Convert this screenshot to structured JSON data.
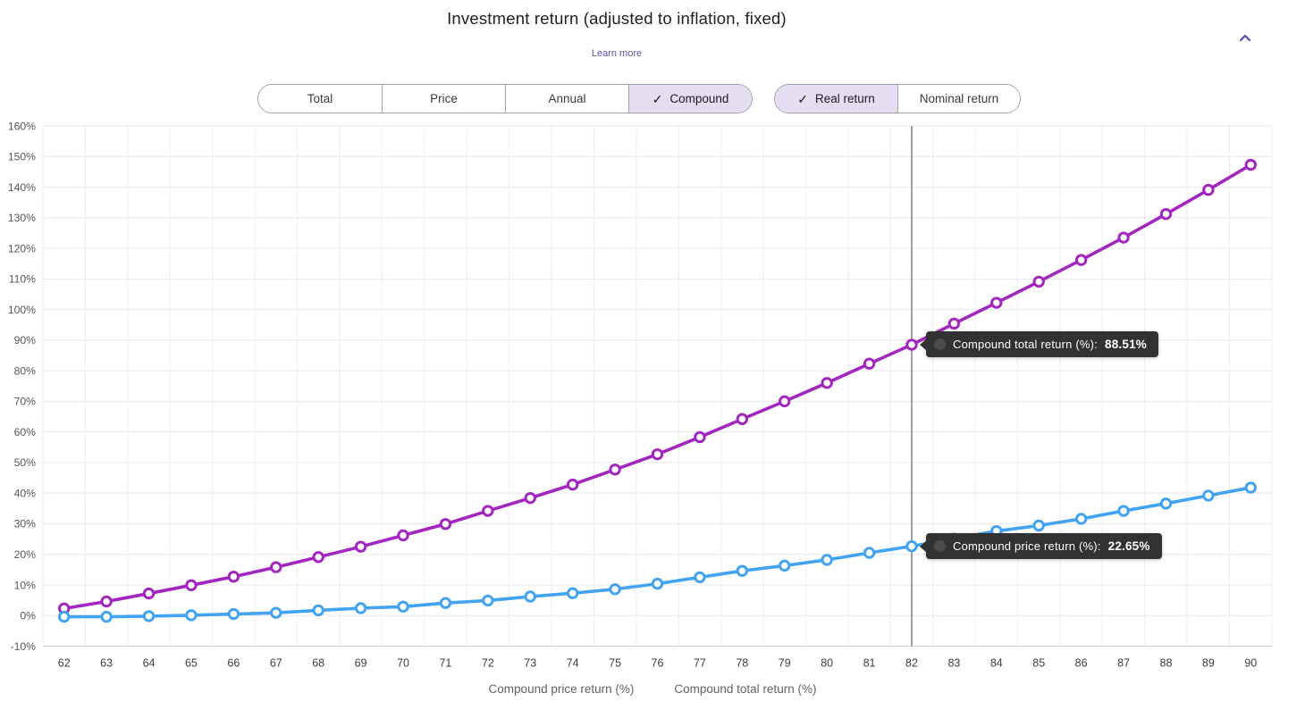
{
  "header": {
    "title": "Investment return (adjusted to inflation, fixed)",
    "learn_more_label": "Learn more",
    "collapse_icon": "chevron-up"
  },
  "controls": {
    "check_icon": "✓",
    "metric_group": [
      {
        "label": "Total",
        "selected": false
      },
      {
        "label": "Price",
        "selected": false
      },
      {
        "label": "Annual",
        "selected": false
      },
      {
        "label": "Compound",
        "selected": true
      }
    ],
    "return_group": [
      {
        "label": "Real return",
        "selected": true
      },
      {
        "label": "Nominal return",
        "selected": false
      }
    ]
  },
  "tooltips": {
    "total": {
      "label": "Compound total return (%):",
      "value": "88.51%"
    },
    "price": {
      "label": "Compound price return (%):",
      "value": "22.65%"
    }
  },
  "chart_data": {
    "type": "line",
    "title": "Investment return (adjusted to inflation, fixed)",
    "x": [
      62,
      63,
      64,
      65,
      66,
      67,
      68,
      69,
      70,
      71,
      72,
      73,
      74,
      75,
      76,
      77,
      78,
      79,
      80,
      81,
      82,
      83,
      84,
      85,
      86,
      87,
      88,
      89,
      90
    ],
    "xlabel": "",
    "ylabel": "",
    "ylim": [
      -10,
      160
    ],
    "ytick_step": 10,
    "ytick_suffix": "%",
    "grid": true,
    "legend_position": "bottom",
    "crosshair_x": 82,
    "series": [
      {
        "name": "Compound price return (%)",
        "color": "#41a3f1",
        "values": [
          -0.4,
          -0.4,
          -0.2,
          0.1,
          0.5,
          0.9,
          1.7,
          2.4,
          2.9,
          4.1,
          4.9,
          6.2,
          7.3,
          8.6,
          10.4,
          12.5,
          14.6,
          16.3,
          18.2,
          20.5,
          22.65,
          25.1,
          27.6,
          29.4,
          31.6,
          34.2,
          36.6,
          39.2,
          41.8
        ]
      },
      {
        "name": "Compound total return (%)",
        "color": "#a226bf",
        "values": [
          2.3,
          4.6,
          7.2,
          9.9,
          12.7,
          15.8,
          19.1,
          22.5,
          26.2,
          29.9,
          34.2,
          38.4,
          42.8,
          47.7,
          52.7,
          58.3,
          64.2,
          70.0,
          76.0,
          82.3,
          88.51,
          95.4,
          102.2,
          109.1,
          116.2,
          123.5,
          131.2,
          139.1,
          147.3
        ]
      }
    ],
    "highlighted_values": {
      "x": 82,
      "total": 88.51,
      "price": 22.65
    }
  }
}
